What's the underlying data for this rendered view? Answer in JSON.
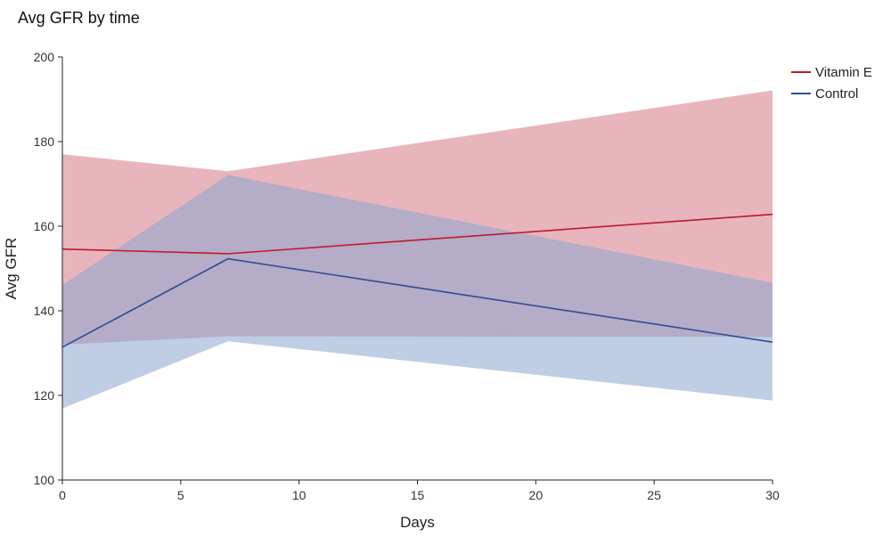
{
  "chart_data": {
    "type": "line",
    "title": "Avg GFR by time",
    "xlabel": "Days",
    "ylabel": "Avg GFR",
    "xlim": [
      0,
      30
    ],
    "ylim": [
      100,
      200
    ],
    "x_ticks": [
      0,
      5,
      10,
      15,
      20,
      25,
      30
    ],
    "y_ticks": [
      100,
      120,
      140,
      160,
      180,
      200
    ],
    "grid": false,
    "legend_position": "top-right",
    "series": [
      {
        "name": "Vitamin E",
        "color": "#c0182e",
        "band_color": "#d9848f",
        "x": [
          0,
          7,
          30
        ],
        "values": [
          154.6,
          153.5,
          162.8
        ],
        "lower": [
          132.0,
          134.0,
          133.8
        ],
        "upper": [
          177.0,
          173.0,
          192.1
        ]
      },
      {
        "name": "Control",
        "color": "#2e4b96",
        "band_color": "#8aa4d0",
        "x": [
          0,
          7,
          30
        ],
        "values": [
          131.4,
          152.3,
          132.6
        ],
        "lower": [
          116.9,
          132.8,
          118.8
        ],
        "upper": [
          146.1,
          172.1,
          146.6
        ]
      }
    ]
  }
}
